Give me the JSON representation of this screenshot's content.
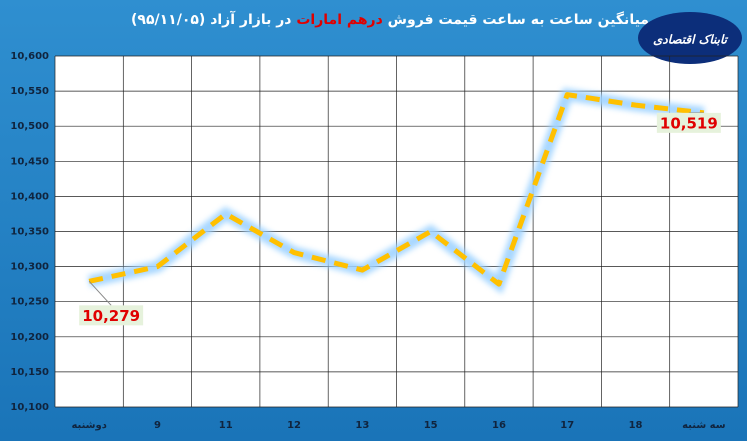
{
  "chart_data": {
    "type": "line",
    "title_prefix": "میانگین ساعت به ساعت قیمت فروش ",
    "title_highlight": "درهم امارات",
    "title_suffix": " در بازار آزاد (۹۵/۱۱/۰۵)",
    "title_color": "#ffffff",
    "highlight_color": "#e00000",
    "logo_text": "تابناک اقتصادی",
    "categories": [
      "دوشنبه",
      "9",
      "11",
      "12",
      "13",
      "15",
      "16",
      "17",
      "18",
      "سه شنبه"
    ],
    "series": [
      {
        "name": "درهم امارات",
        "color": "#ffc000",
        "values": [
          10279,
          10300,
          10375,
          10320,
          10295,
          10350,
          10275,
          10545,
          10530,
          10519
        ],
        "value_labels": [
          "10,279",
          null,
          null,
          null,
          null,
          null,
          null,
          null,
          null,
          "10,519"
        ]
      }
    ],
    "ylim": [
      10100,
      10600
    ],
    "yticks": [
      {
        "value": 10100,
        "label": "10,100"
      },
      {
        "value": 10150,
        "label": "10,150"
      },
      {
        "value": 10200,
        "label": "10,200"
      },
      {
        "value": 10250,
        "label": "10,250"
      },
      {
        "value": 10300,
        "label": "10,300"
      },
      {
        "value": 10350,
        "label": "10,350"
      },
      {
        "value": 10400,
        "label": "10,400"
      },
      {
        "value": 10450,
        "label": "10,450"
      },
      {
        "value": 10500,
        "label": "10,500"
      },
      {
        "value": 10550,
        "label": "10,550"
      },
      {
        "value": 10600,
        "label": "10,600"
      }
    ],
    "grid": true
  }
}
